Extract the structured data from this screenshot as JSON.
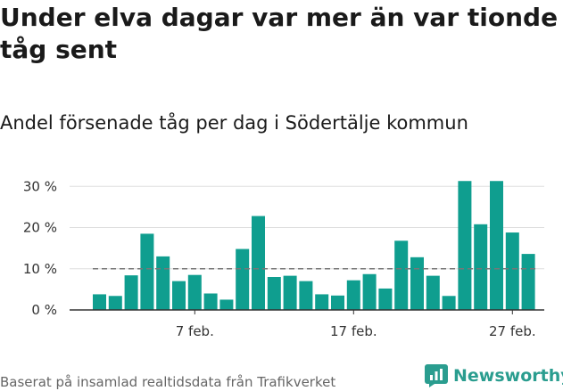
{
  "title": "Under elva dagar var mer än var tionde tåg sent",
  "subtitle": "Andel försenade tåg per dag i Södertälje kommun",
  "footer": "Baserat på insamlad realtidsdata från Trafikverket",
  "logo": {
    "text": "Newsworthy",
    "icon": "newsworthy-logo-icon"
  },
  "colors": {
    "bar": "#0f9e8f",
    "reference_line": "#777777",
    "grid": "#dddddd",
    "brand": "#2a9d8f"
  },
  "chart_data": {
    "type": "bar",
    "x_start_day": 1,
    "values": [
      3.8,
      3.4,
      8.4,
      18.5,
      13.0,
      7.0,
      8.5,
      4.0,
      2.5,
      14.8,
      22.8,
      8.0,
      8.3,
      7.0,
      3.8,
      3.5,
      7.2,
      8.7,
      5.2,
      16.8,
      12.8,
      8.3,
      3.4,
      31.3,
      20.8,
      31.3,
      18.8,
      13.6
    ],
    "x_ticks": [
      {
        "index": 6,
        "label": "7 feb."
      },
      {
        "index": 16,
        "label": "17 feb."
      },
      {
        "index": 26,
        "label": "27 feb."
      }
    ],
    "y_ticks": [
      {
        "value": 0,
        "label": "0 %"
      },
      {
        "value": 10,
        "label": "10 %"
      },
      {
        "value": 20,
        "label": "20 %"
      },
      {
        "value": 30,
        "label": "30 %"
      }
    ],
    "ylim": [
      0,
      32
    ],
    "reference_line": 10,
    "grid": true
  }
}
